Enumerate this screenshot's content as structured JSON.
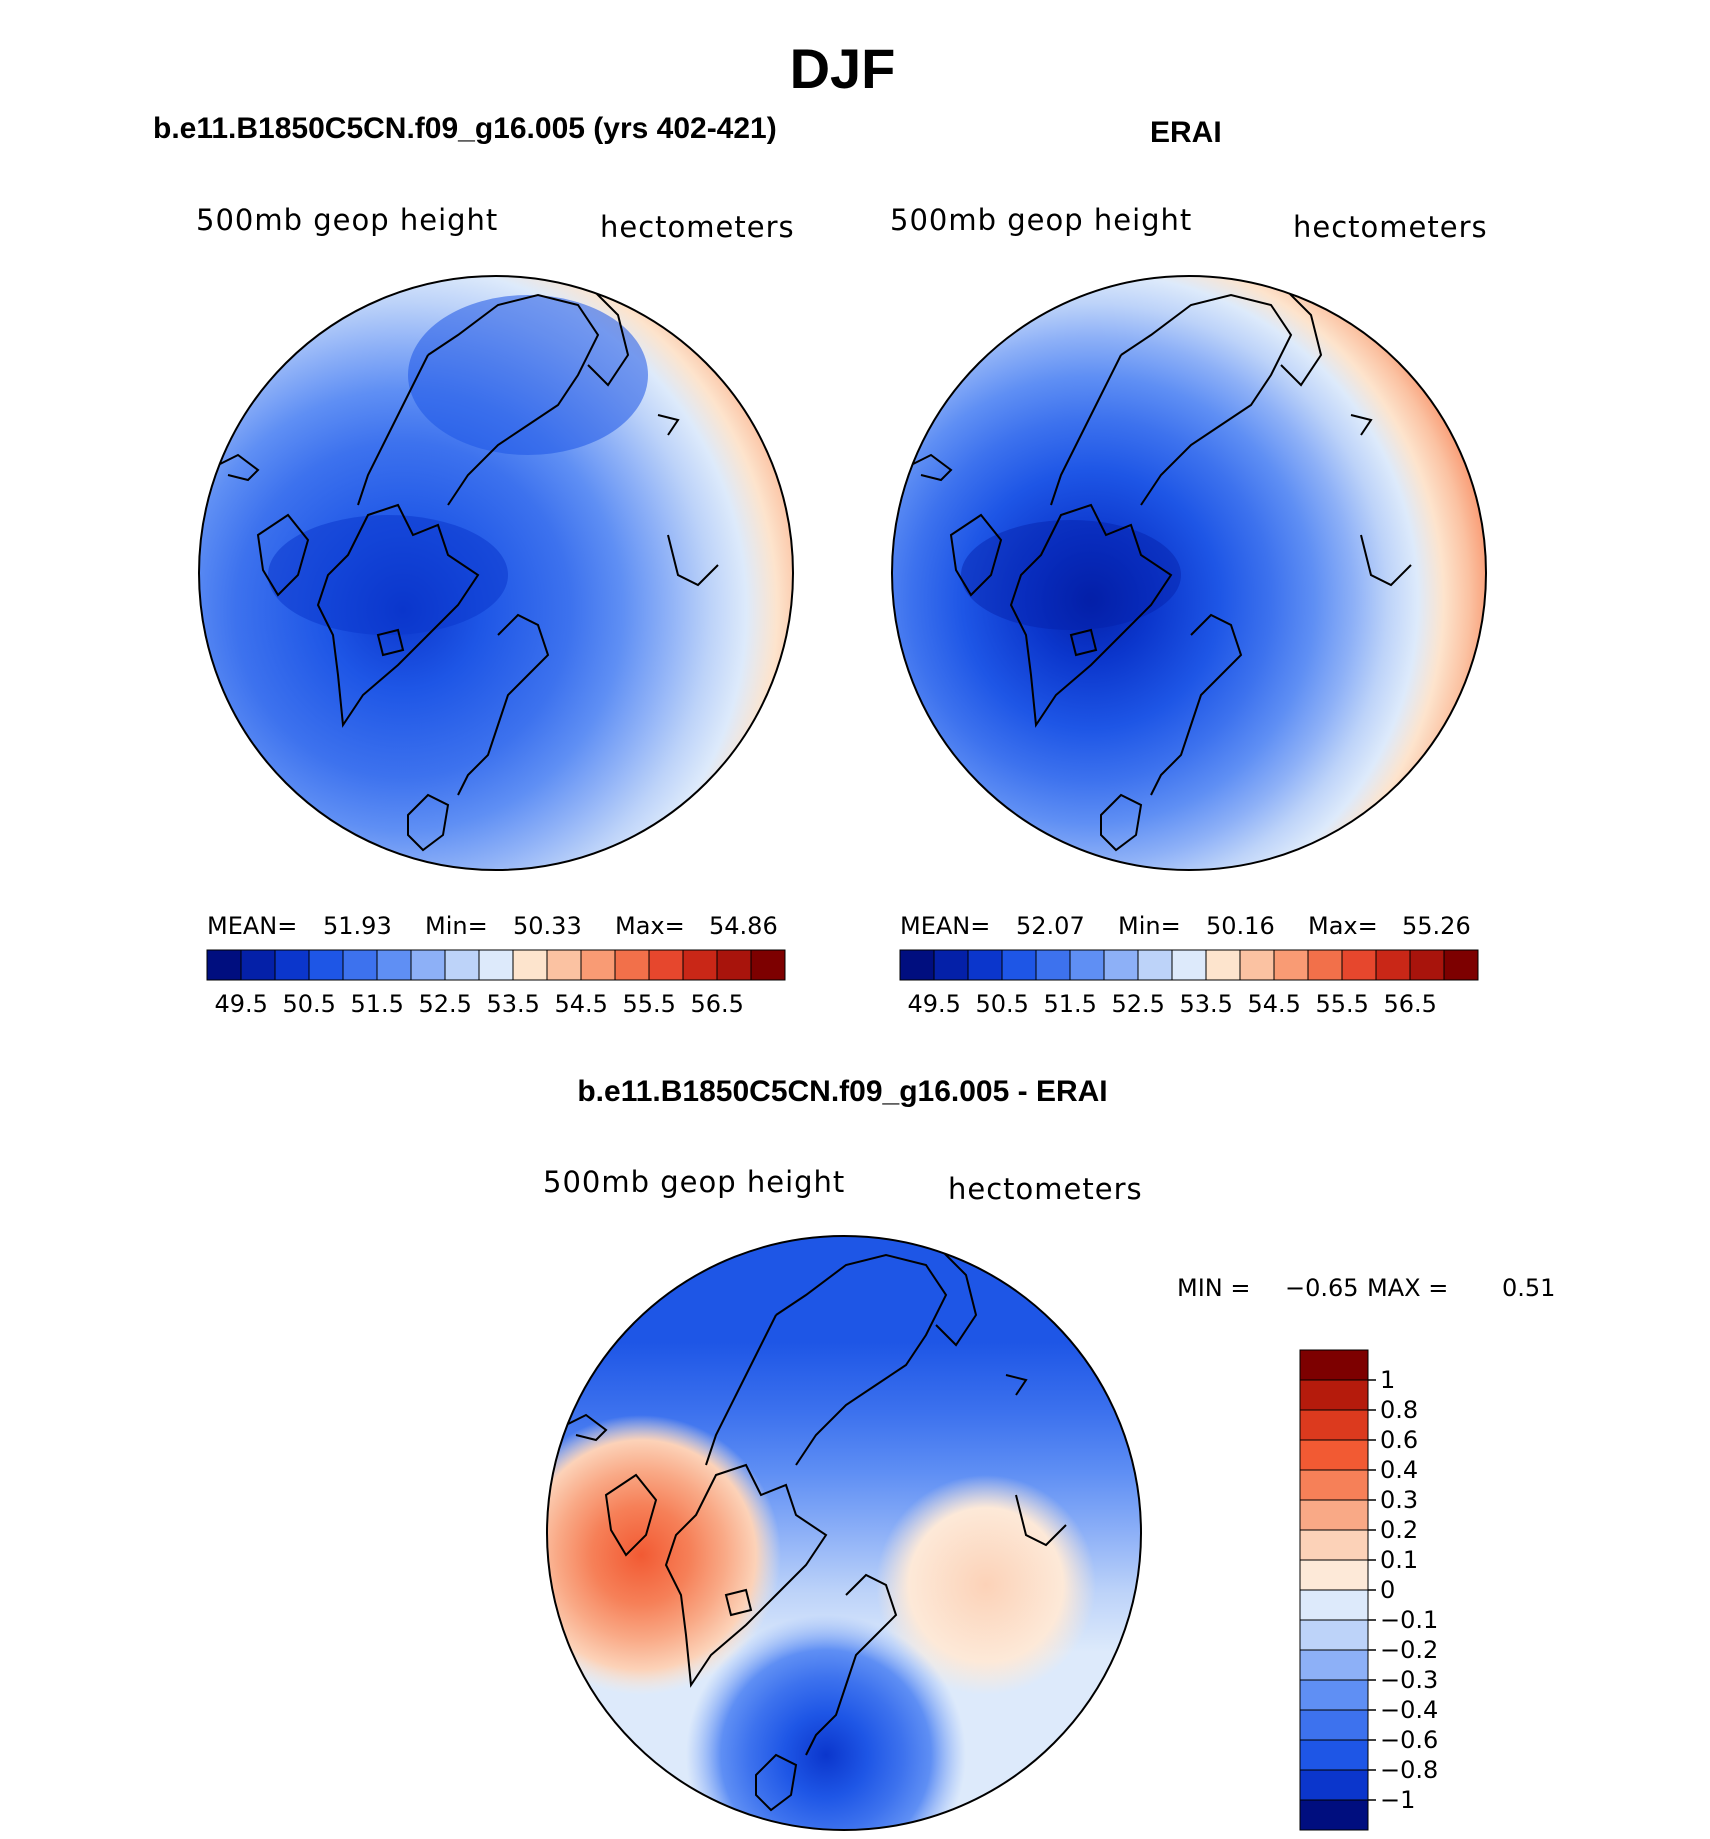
{
  "figure": {
    "title": "DJF",
    "variable": "500mb geop height",
    "units": "hectometers"
  },
  "panels": {
    "model": {
      "title": "b.e11.B1850C5CN.f09_g16.005 (yrs 402-421)",
      "stats": {
        "mean_label": "MEAN=",
        "mean": "51.93",
        "min_label": "Min=",
        "min": "50.33",
        "max_label": "Max=",
        "max": "54.86"
      }
    },
    "obs": {
      "title": "ERAI",
      "stats": {
        "mean_label": "MEAN=",
        "mean": "52.07",
        "min_label": "Min=",
        "min": "50.16",
        "max_label": "Max=",
        "max": "55.26"
      }
    },
    "diff": {
      "title": "b.e11.B1850C5CN.f09_g16.005 - ERAI",
      "stats": {
        "min_label": "MIN =",
        "min": "−0.65",
        "max_label": "MAX =",
        "max": "0.51"
      }
    }
  },
  "colorbars": {
    "abs": {
      "labels": [
        "49.5",
        "50.5",
        "51.5",
        "52.5",
        "53.5",
        "54.5",
        "55.5",
        "56.5"
      ],
      "colors": [
        "#000e7f",
        "#0420a8",
        "#0b36cc",
        "#1e56e6",
        "#3d72ee",
        "#5f8ff4",
        "#8db0f7",
        "#bdd3f9",
        "#ddeafb",
        "#fde4cd",
        "#fbc2a2",
        "#f99b74",
        "#f2704a",
        "#e6472d",
        "#c92717",
        "#a8140c",
        "#7d0000"
      ]
    },
    "diff": {
      "labels": [
        "1",
        "0.8",
        "0.6",
        "0.4",
        "0.3",
        "0.2",
        "0.1",
        "0",
        "−0.1",
        "−0.2",
        "−0.3",
        "−0.4",
        "−0.6",
        "−0.8",
        "−1"
      ],
      "colors": [
        "#7d0000",
        "#b51b0c",
        "#dc3a1e",
        "#f25a33",
        "#f68058",
        "#f9a986",
        "#fcd2b8",
        "#fde9d8",
        "#ddeafb",
        "#bdd3f9",
        "#8db0f7",
        "#5f8ff4",
        "#3d72ee",
        "#1e56e6",
        "#0b36cc",
        "#000e7f"
      ]
    }
  },
  "chart_data": [
    {
      "type": "heatmap",
      "projection": "north polar stereographic",
      "title": "b.e11.B1850C5CN.f09_g16.005 (yrs 402-421)",
      "field": "500mb geop height",
      "units": "hectometers",
      "levels": [
        49.5,
        50,
        50.5,
        51,
        51.5,
        52,
        52.5,
        53,
        53.5,
        54,
        54.5,
        55,
        55.5,
        56,
        56.5
      ],
      "mean": 51.93,
      "min": 50.33,
      "max": 54.86
    },
    {
      "type": "heatmap",
      "projection": "north polar stereographic",
      "title": "ERAI",
      "field": "500mb geop height",
      "units": "hectometers",
      "levels": [
        49.5,
        50,
        50.5,
        51,
        51.5,
        52,
        52.5,
        53,
        53.5,
        54,
        54.5,
        55,
        55.5,
        56,
        56.5
      ],
      "mean": 52.07,
      "min": 50.16,
      "max": 55.26
    },
    {
      "type": "heatmap",
      "projection": "north polar stereographic",
      "title": "b.e11.B1850C5CN.f09_g16.005 - ERAI",
      "field": "500mb geop height",
      "units": "hectometers",
      "levels": [
        -1,
        -0.8,
        -0.6,
        -0.4,
        -0.3,
        -0.2,
        -0.1,
        0,
        0.1,
        0.2,
        0.3,
        0.4,
        0.6,
        0.8,
        1
      ],
      "min": -0.65,
      "max": 0.51
    }
  ]
}
